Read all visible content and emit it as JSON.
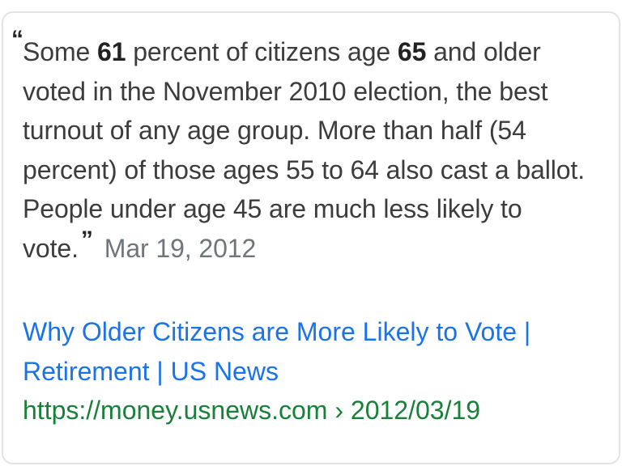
{
  "snippet": {
    "part1": "Some ",
    "bold1": "61",
    "part2": " percent of citizens age ",
    "bold2": "65",
    "part3": " and older voted in the November 2010 election, the best turnout of any age group. More than half (54 percent) of those ages 55 to 64 also cast a ballot. People under age 45 are much less likely to vote.",
    "open_quote": "“",
    "close_quote": "”",
    "date": "Mar 19, 2012"
  },
  "result": {
    "title": "Why Older Citizens are More Likely to Vote | Retirement | US News",
    "url": "https://money.usnews.com › 2012/03/19"
  },
  "colors": {
    "link": "#1a73e8",
    "url": "#188038",
    "text": "#3c3c3c",
    "date": "#70757a"
  }
}
